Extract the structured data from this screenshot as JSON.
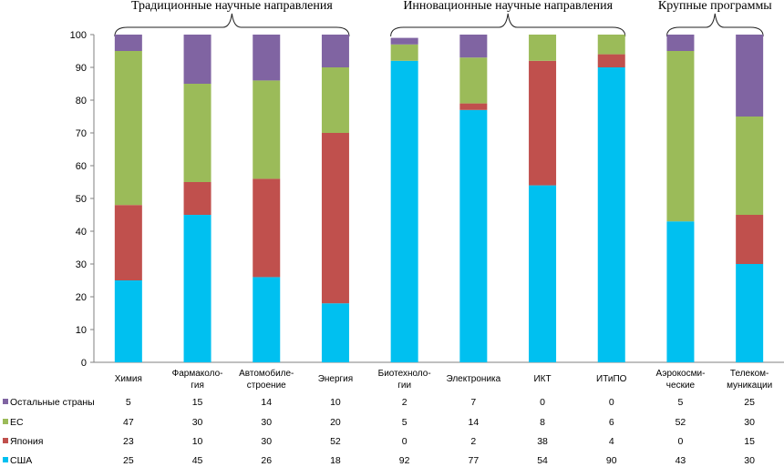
{
  "chart_data": {
    "type": "bar",
    "stacked": true,
    "categories": [
      [
        "Химия"
      ],
      [
        "Фармаколо-",
        "гия"
      ],
      [
        "Автомобиле-",
        "строение"
      ],
      [
        "Энергия"
      ],
      [
        "Биотехноло-",
        "гии"
      ],
      [
        "Электроника"
      ],
      [
        "ИКТ"
      ],
      [
        "ИТиПО"
      ],
      [
        "Аэрокосми-",
        "ческие"
      ],
      [
        "Телеком-",
        "муникации"
      ]
    ],
    "series": [
      {
        "name": "США",
        "color": "#00c0f0",
        "values": [
          25,
          45,
          26,
          18,
          92,
          77,
          54,
          90,
          43,
          30
        ]
      },
      {
        "name": "Япония",
        "color": "#c0504d",
        "values": [
          23,
          10,
          30,
          52,
          0,
          2,
          38,
          4,
          0,
          15
        ]
      },
      {
        "name": "ЕС",
        "color": "#9bbb59",
        "values": [
          47,
          30,
          30,
          20,
          5,
          14,
          8,
          6,
          52,
          30
        ]
      },
      {
        "name": "Остальные страны",
        "color": "#8064a2",
        "values": [
          5,
          15,
          14,
          10,
          2,
          7,
          0,
          0,
          5,
          25
        ]
      }
    ],
    "table_rows_order": [
      "Остальные страны",
      "ЕС",
      "Япония",
      "США"
    ],
    "groups": [
      {
        "title": "Традиционные научные направления",
        "from": 0,
        "to": 3
      },
      {
        "title": "Инновационные научные направления",
        "from": 4,
        "to": 7
      },
      {
        "title": "Крупные программы",
        "from": 8,
        "to": 9
      }
    ],
    "ylim": [
      0,
      100
    ],
    "yticks": [
      0,
      10,
      20,
      30,
      40,
      50,
      60,
      70,
      80,
      90,
      100
    ],
    "grid": false,
    "legend": "data-table-left"
  }
}
